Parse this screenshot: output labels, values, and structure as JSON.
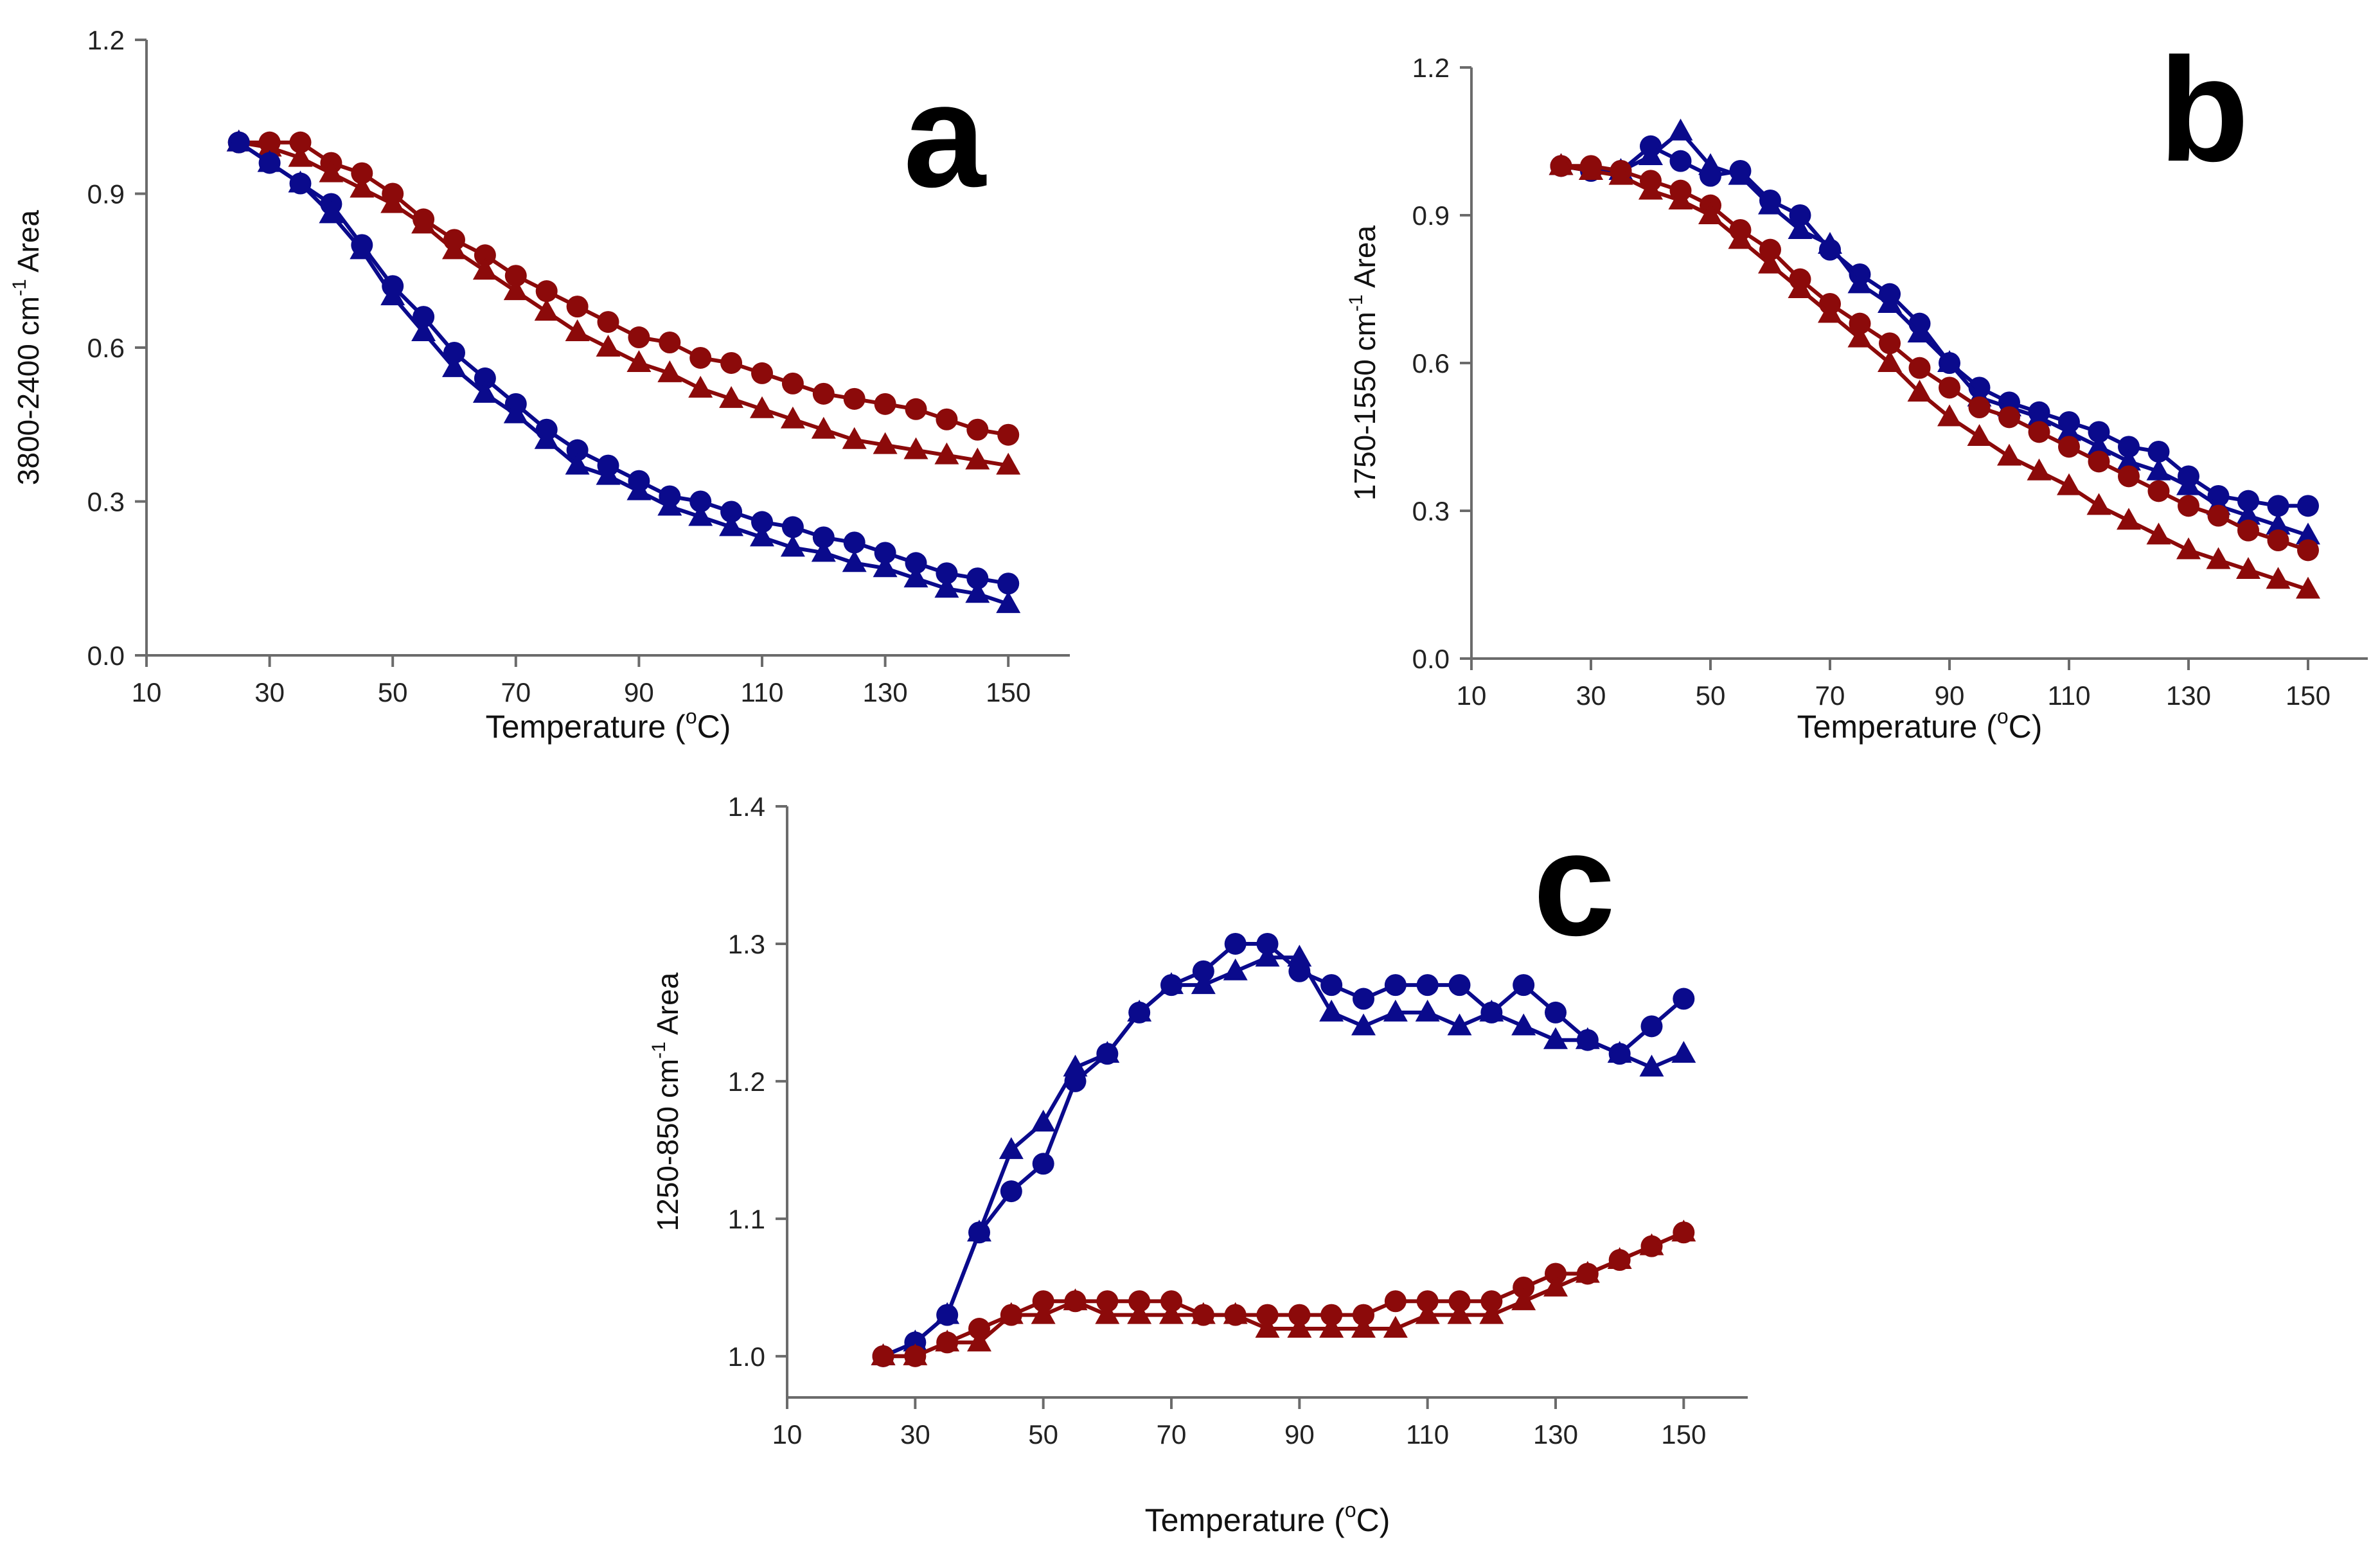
{
  "colors": {
    "blue": "#0a0a8c",
    "red": "#8c0a0a"
  },
  "chart_data": [
    {
      "panel": "a",
      "type": "line",
      "title": "",
      "xlabel": "Temperature (⁰C)",
      "xlabel_main": "Temperature (",
      "xlabel_sup": "o",
      "xlabel_end": "C)",
      "ylabel": "3800-2400 cm-1 Area",
      "ylabel_main": "3800-2400 cm",
      "ylabel_sup": "-1",
      "ylabel_end": " Area",
      "xlim": [
        10,
        160
      ],
      "ylim": [
        0,
        1.2
      ],
      "xticks": [
        10,
        30,
        50,
        70,
        90,
        110,
        130,
        150
      ],
      "yticks": [
        0,
        0.3,
        0.6,
        0.9,
        1.2
      ],
      "ytick_labels": [
        "0.0",
        "0.3",
        "0.6",
        "0.9",
        "1.2"
      ],
      "x": [
        25,
        30,
        35,
        40,
        45,
        50,
        55,
        60,
        65,
        70,
        75,
        80,
        85,
        90,
        95,
        100,
        105,
        110,
        115,
        120,
        125,
        130,
        135,
        140,
        145,
        150
      ],
      "series": [
        {
          "name": "red-circle",
          "color": "red",
          "marker": "circle",
          "values": [
            1.0,
            1.0,
            1.0,
            0.96,
            0.94,
            0.9,
            0.85,
            0.81,
            0.78,
            0.74,
            0.71,
            0.68,
            0.65,
            0.62,
            0.61,
            0.58,
            0.57,
            0.55,
            0.53,
            0.51,
            0.5,
            0.49,
            0.48,
            0.46,
            0.44,
            0.43
          ]
        },
        {
          "name": "red-triangle",
          "color": "red",
          "marker": "triangle",
          "values": [
            1.0,
            0.99,
            0.97,
            0.94,
            0.91,
            0.88,
            0.84,
            0.79,
            0.75,
            0.71,
            0.67,
            0.63,
            0.6,
            0.57,
            0.55,
            0.52,
            0.5,
            0.48,
            0.46,
            0.44,
            0.42,
            0.41,
            0.4,
            0.39,
            0.38,
            0.37
          ]
        },
        {
          "name": "blue-circle",
          "color": "blue",
          "marker": "circle",
          "values": [
            1.0,
            0.96,
            0.92,
            0.88,
            0.8,
            0.72,
            0.66,
            0.59,
            0.54,
            0.49,
            0.44,
            0.4,
            0.37,
            0.34,
            0.31,
            0.3,
            0.28,
            0.26,
            0.25,
            0.23,
            0.22,
            0.2,
            0.18,
            0.16,
            0.15,
            0.14
          ]
        },
        {
          "name": "blue-triangle",
          "color": "blue",
          "marker": "triangle",
          "values": [
            1.0,
            0.96,
            0.92,
            0.86,
            0.79,
            0.7,
            0.63,
            0.56,
            0.51,
            0.47,
            0.42,
            0.37,
            0.35,
            0.32,
            0.29,
            0.27,
            0.25,
            0.23,
            0.21,
            0.2,
            0.18,
            0.17,
            0.15,
            0.13,
            0.12,
            0.1
          ]
        }
      ]
    },
    {
      "panel": "b",
      "type": "line",
      "title": "",
      "xlabel": "Temperature (⁰C)",
      "xlabel_main": "Temperature (",
      "xlabel_sup": "o",
      "xlabel_end": "C)",
      "ylabel": "1750-1550 cm-1 Area",
      "ylabel_main": "1750-1550 cm",
      "ylabel_sup": "-1",
      "ylabel_end": " Area",
      "xlim": [
        10,
        160
      ],
      "ylim": [
        0,
        1.2
      ],
      "xticks": [
        10,
        30,
        50,
        70,
        90,
        110,
        130,
        150
      ],
      "yticks": [
        0,
        0.3,
        0.6,
        0.9,
        1.2
      ],
      "ytick_labels": [
        "0.0",
        "0.3",
        "0.6",
        "0.9",
        "1.2"
      ],
      "x": [
        25,
        30,
        35,
        40,
        45,
        50,
        55,
        60,
        65,
        70,
        75,
        80,
        85,
        90,
        95,
        100,
        105,
        110,
        115,
        120,
        125,
        130,
        135,
        140,
        145,
        150
      ],
      "series": [
        {
          "name": "blue-circle",
          "color": "blue",
          "marker": "circle",
          "values": [
            1.0,
            0.99,
            0.99,
            1.04,
            1.01,
            0.98,
            0.99,
            0.93,
            0.9,
            0.83,
            0.78,
            0.74,
            0.68,
            0.6,
            0.55,
            0.52,
            0.5,
            0.48,
            0.46,
            0.43,
            0.42,
            0.37,
            0.33,
            0.32,
            0.31,
            0.31
          ]
        },
        {
          "name": "blue-triangle",
          "color": "blue",
          "marker": "triangle",
          "values": [
            1.0,
            0.99,
            0.99,
            1.02,
            1.07,
            1.0,
            0.98,
            0.92,
            0.87,
            0.84,
            0.76,
            0.72,
            0.66,
            0.6,
            0.53,
            0.51,
            0.49,
            0.46,
            0.43,
            0.4,
            0.38,
            0.35,
            0.31,
            0.29,
            0.27,
            0.25
          ]
        },
        {
          "name": "red-circle",
          "color": "red",
          "marker": "circle",
          "values": [
            1.0,
            1.0,
            0.99,
            0.97,
            0.95,
            0.92,
            0.87,
            0.83,
            0.77,
            0.72,
            0.68,
            0.64,
            0.59,
            0.55,
            0.51,
            0.49,
            0.46,
            0.43,
            0.4,
            0.37,
            0.34,
            0.31,
            0.29,
            0.26,
            0.24,
            0.22
          ]
        },
        {
          "name": "red-triangle",
          "color": "red",
          "marker": "triangle",
          "values": [
            1.0,
            0.99,
            0.98,
            0.95,
            0.93,
            0.9,
            0.85,
            0.8,
            0.75,
            0.7,
            0.65,
            0.6,
            0.54,
            0.49,
            0.45,
            0.41,
            0.38,
            0.35,
            0.31,
            0.28,
            0.25,
            0.22,
            0.2,
            0.18,
            0.16,
            0.14
          ]
        }
      ]
    },
    {
      "panel": "c",
      "type": "line",
      "title": "",
      "xlabel": "Temperature (⁰C)",
      "xlabel_main": "Temperature (",
      "xlabel_sup": "o",
      "xlabel_end": "C)",
      "ylabel": "1250-850 cm-1 Area",
      "ylabel_main": "1250-850 cm",
      "ylabel_sup": "-1",
      "ylabel_end": " Area",
      "xlim": [
        10,
        160
      ],
      "ylim": [
        0.97,
        1.4
      ],
      "xticks": [
        10,
        30,
        50,
        70,
        90,
        110,
        130,
        150
      ],
      "yticks": [
        1.0,
        1.1,
        1.2,
        1.3,
        1.4
      ],
      "ytick_labels": [
        "1.0",
        "1.1",
        "1.2",
        "1.3",
        "1.4"
      ],
      "x": [
        25,
        30,
        35,
        40,
        45,
        50,
        55,
        60,
        65,
        70,
        75,
        80,
        85,
        90,
        95,
        100,
        105,
        110,
        115,
        120,
        125,
        130,
        135,
        140,
        145,
        150
      ],
      "series": [
        {
          "name": "blue-circle",
          "color": "blue",
          "marker": "circle",
          "values": [
            1.0,
            1.01,
            1.03,
            1.09,
            1.12,
            1.14,
            1.2,
            1.22,
            1.25,
            1.27,
            1.28,
            1.3,
            1.3,
            1.28,
            1.27,
            1.26,
            1.27,
            1.27,
            1.27,
            1.25,
            1.27,
            1.25,
            1.23,
            1.22,
            1.24,
            1.26
          ]
        },
        {
          "name": "blue-triangle",
          "color": "blue",
          "marker": "triangle",
          "values": [
            1.0,
            1.01,
            1.03,
            1.09,
            1.15,
            1.17,
            1.21,
            1.22,
            1.25,
            1.27,
            1.27,
            1.28,
            1.29,
            1.29,
            1.25,
            1.24,
            1.25,
            1.25,
            1.24,
            1.25,
            1.24,
            1.23,
            1.23,
            1.22,
            1.21,
            1.22
          ]
        },
        {
          "name": "red-circle",
          "color": "red",
          "marker": "circle",
          "values": [
            1.0,
            1.0,
            1.01,
            1.02,
            1.03,
            1.04,
            1.04,
            1.04,
            1.04,
            1.04,
            1.03,
            1.03,
            1.03,
            1.03,
            1.03,
            1.03,
            1.04,
            1.04,
            1.04,
            1.04,
            1.05,
            1.06,
            1.06,
            1.07,
            1.08,
            1.09
          ]
        },
        {
          "name": "red-triangle",
          "color": "red",
          "marker": "triangle",
          "values": [
            1.0,
            1.0,
            1.01,
            1.01,
            1.03,
            1.03,
            1.04,
            1.03,
            1.03,
            1.03,
            1.03,
            1.03,
            1.02,
            1.02,
            1.02,
            1.02,
            1.02,
            1.03,
            1.03,
            1.03,
            1.04,
            1.05,
            1.06,
            1.07,
            1.08,
            1.09
          ]
        }
      ]
    }
  ]
}
